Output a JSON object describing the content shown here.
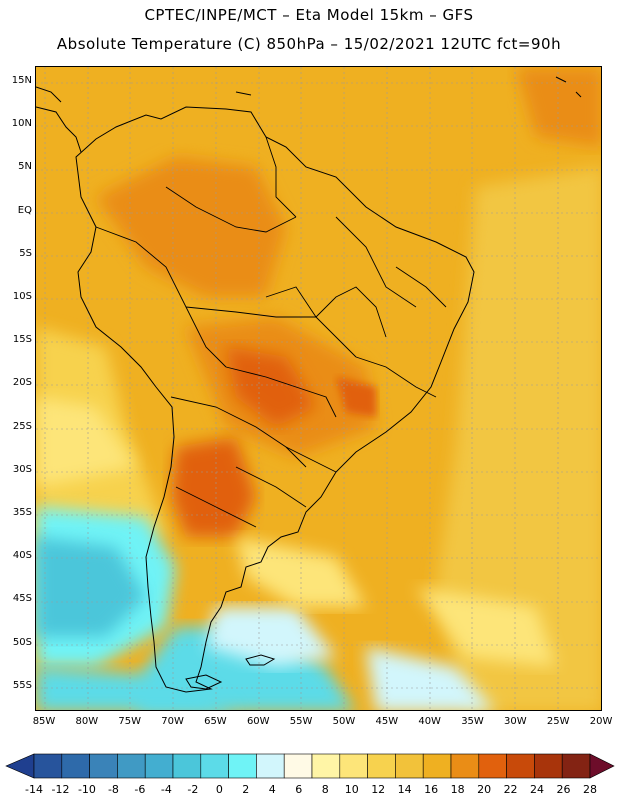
{
  "header": {
    "line1": "CPTEC/INPE/MCT –  Eta Model 15km – GFS",
    "line2": "Absolute Temperature (C) 850hPa – 15/02/2021 12UTC fct=90h"
  },
  "map": {
    "lat_labels": [
      "15N",
      "10N",
      "5N",
      "EQ",
      "5S",
      "10S",
      "15S",
      "20S",
      "25S",
      "30S",
      "35S",
      "40S",
      "45S",
      "50S",
      "55S"
    ],
    "lon_labels": [
      "85W",
      "80W",
      "75W",
      "70W",
      "65W",
      "60W",
      "55W",
      "50W",
      "45W",
      "40W",
      "35W",
      "30W",
      "25W",
      "20W"
    ],
    "background_color": "#efb021",
    "ocean_warm_color": "#f2c642",
    "cold_color": "#5ad3e6"
  },
  "colorbar": {
    "labels": [
      "-14",
      "-12",
      "-10",
      "-8",
      "-6",
      "-4",
      "-2",
      "0",
      "2",
      "4",
      "6",
      "8",
      "10",
      "12",
      "14",
      "16",
      "18",
      "20",
      "22",
      "24",
      "26",
      "28"
    ],
    "colors": [
      "#1f3f8f",
      "#27549c",
      "#2e6aaa",
      "#3a83b8",
      "#409ac4",
      "#43aed0",
      "#4bc6da",
      "#5cdbe8",
      "#6ff3f6",
      "#d2f6fc",
      "#fffae6",
      "#fff5a6",
      "#fde579",
      "#f7d24e",
      "#f2c23a",
      "#efb021",
      "#ea8d16",
      "#e1610d",
      "#c84a0a",
      "#a8340b",
      "#832313",
      "#6d0d2a"
    ]
  }
}
